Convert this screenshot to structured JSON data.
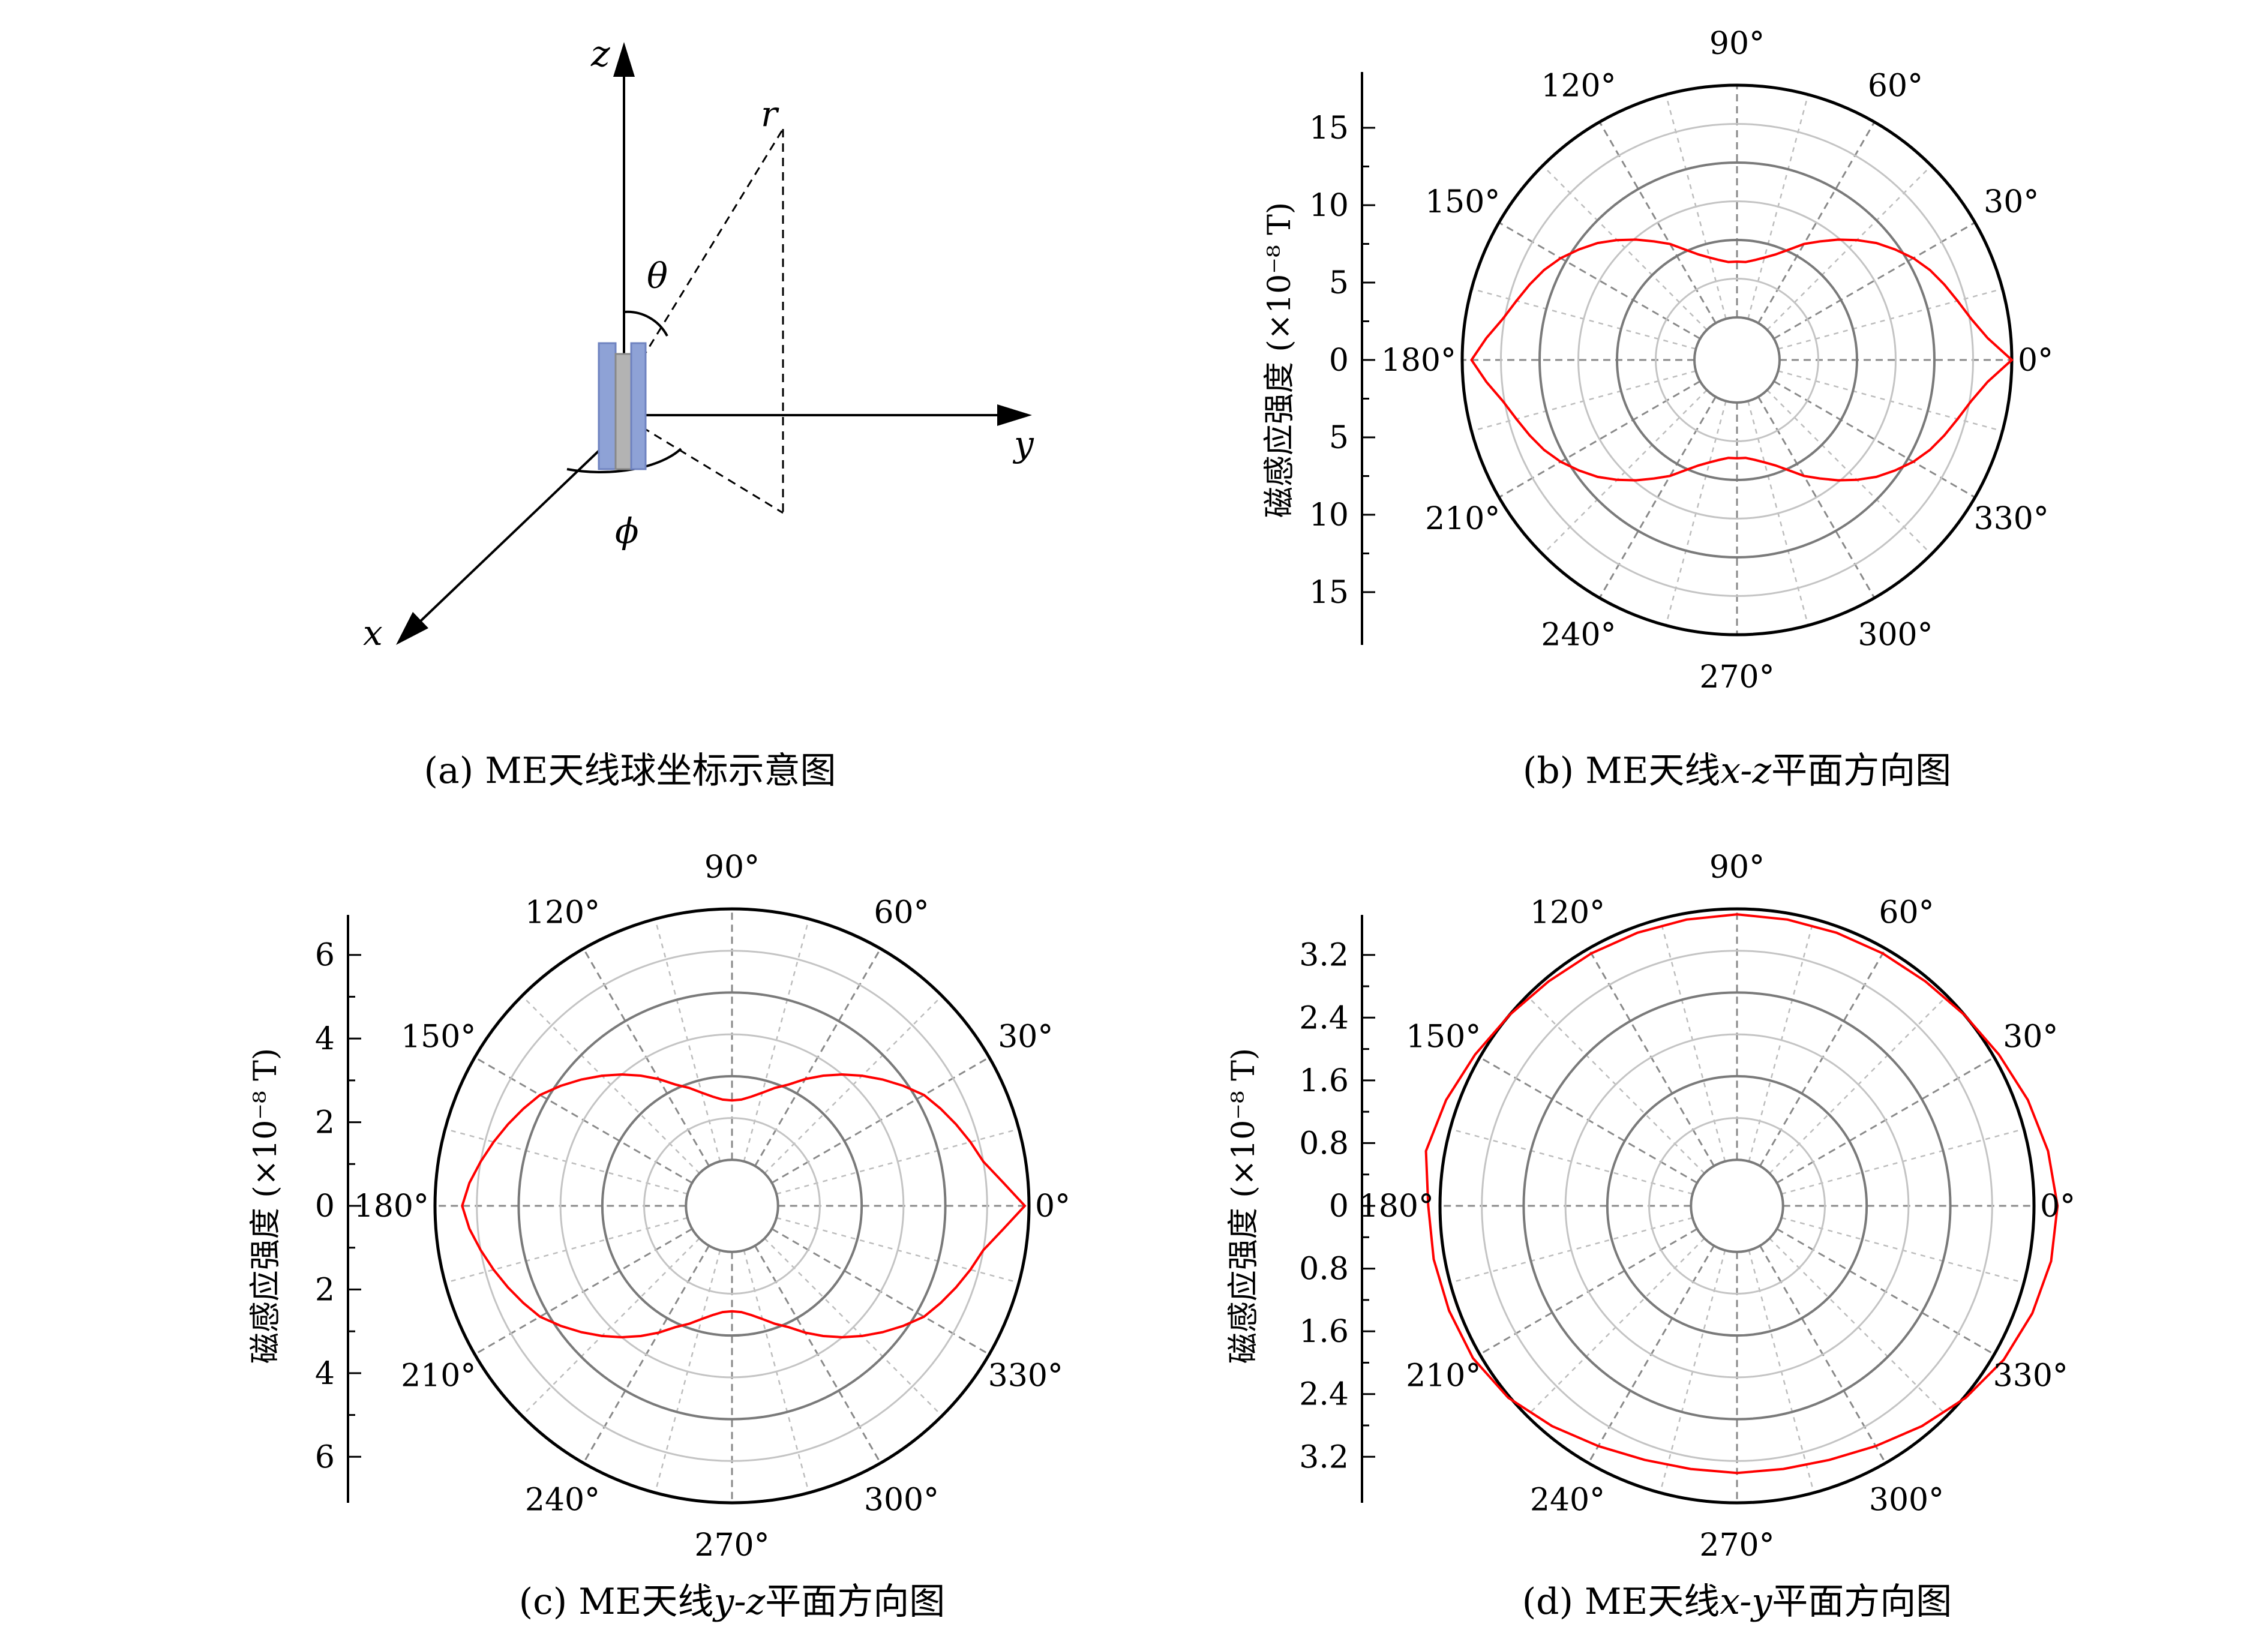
{
  "colors": {
    "curve": "#ff0000",
    "antenna_blue": "#8ea2d6",
    "antenna_gray": "#b3b3b3"
  },
  "schematic": {
    "caption": "(a) ME天线球坐标示意图",
    "axis_x": "x",
    "axis_y": "y",
    "axis_z": "z",
    "point_r": "r",
    "angle_theta": "θ",
    "angle_phi": "ϕ"
  },
  "chart_data": [
    {
      "type": "polar",
      "caption_prefix": "(b) ME天线",
      "caption_var": "x-z",
      "caption_suffix": "平面方向图",
      "ylabel": "磁感应强度 (×10⁻⁸ T)",
      "rlim": [
        0,
        15
      ],
      "radial_ticks": [
        "15",
        "10",
        "5",
        "0",
        "5",
        "10",
        "15"
      ],
      "angle_labels": [
        "0°",
        "30°",
        "60°",
        "90°",
        "120°",
        "150°",
        "180°",
        "210°",
        "240°",
        "270°",
        "300°",
        "330°"
      ],
      "series": [
        {
          "theta_deg": [
            0,
            5,
            10,
            15,
            20,
            25,
            30,
            35,
            40,
            45,
            50,
            55,
            60,
            65,
            70,
            75,
            80,
            85,
            90,
            95,
            100,
            105,
            110,
            115,
            120,
            125,
            130,
            135,
            140,
            145,
            150,
            155,
            160,
            165,
            170,
            175,
            180,
            185,
            190,
            195,
            200,
            205,
            210,
            215,
            220,
            225,
            230,
            235,
            240,
            245,
            250,
            255,
            260,
            265,
            270,
            275,
            280,
            285,
            290,
            295,
            300,
            305,
            310,
            315,
            320,
            325,
            330,
            335,
            340,
            345,
            350,
            355,
            360
          ],
          "r": [
            15,
            13.5,
            12.6,
            12.0,
            11.5,
            11.0,
            10.4,
            9.7,
            9.0,
            8.2,
            7.4,
            6.6,
            5.9,
            5.1,
            4.5,
            4.1,
            3.8,
            3.6,
            3.6,
            3.6,
            3.8,
            4.1,
            4.5,
            5.1,
            5.9,
            6.6,
            7.4,
            8.2,
            9.0,
            9.7,
            10.4,
            11.0,
            11.5,
            12.0,
            12.6,
            13.5,
            14.4,
            13.5,
            12.6,
            12.0,
            11.5,
            11.0,
            10.4,
            9.7,
            9.0,
            8.2,
            7.4,
            6.6,
            5.9,
            5.1,
            4.5,
            4.1,
            3.8,
            3.6,
            3.6,
            3.6,
            3.8,
            4.1,
            4.5,
            5.1,
            5.9,
            6.6,
            7.4,
            8.2,
            9.0,
            9.7,
            10.4,
            11.0,
            11.5,
            12.0,
            12.6,
            13.5,
            15
          ]
        }
      ]
    },
    {
      "type": "polar",
      "caption_prefix": "(c) ME天线",
      "caption_var": "y-z",
      "caption_suffix": "平面方向图",
      "ylabel": "磁感应强度 (×10⁻⁸ T)",
      "rlim": [
        0,
        6
      ],
      "radial_ticks": [
        "6",
        "4",
        "2",
        "0",
        "2",
        "4",
        "6"
      ],
      "angle_labels": [
        "0°",
        "30°",
        "60°",
        "90°",
        "120°",
        "150°",
        "180°",
        "210°",
        "240°",
        "270°",
        "300°",
        "330°"
      ],
      "series": [
        {
          "theta_deg": [
            0,
            5,
            10,
            15,
            20,
            25,
            30,
            35,
            40,
            45,
            50,
            55,
            60,
            65,
            70,
            75,
            80,
            85,
            90,
            95,
            100,
            105,
            110,
            115,
            120,
            125,
            130,
            135,
            140,
            145,
            150,
            155,
            160,
            165,
            170,
            175,
            180,
            185,
            190,
            195,
            200,
            205,
            210,
            215,
            220,
            225,
            230,
            235,
            240,
            245,
            250,
            255,
            260,
            265,
            270,
            275,
            280,
            285,
            290,
            295,
            300,
            305,
            310,
            315,
            320,
            325,
            330,
            335,
            340,
            345,
            350,
            355,
            360
          ],
          "r": [
            5.9,
            5.4,
            5.0,
            4.8,
            4.6,
            4.4,
            4.2,
            3.9,
            3.6,
            3.3,
            3.0,
            2.7,
            2.4,
            2.1,
            1.9,
            1.7,
            1.55,
            1.45,
            1.42,
            1.45,
            1.55,
            1.7,
            1.9,
            2.1,
            2.4,
            2.7,
            3.0,
            3.3,
            3.6,
            3.9,
            4.2,
            4.4,
            4.6,
            4.8,
            5.0,
            5.2,
            5.35,
            5.2,
            5.0,
            4.8,
            4.6,
            4.4,
            4.2,
            3.9,
            3.6,
            3.3,
            3.0,
            2.7,
            2.4,
            2.1,
            1.9,
            1.7,
            1.55,
            1.45,
            1.42,
            1.45,
            1.55,
            1.7,
            1.9,
            2.1,
            2.4,
            2.7,
            3.0,
            3.3,
            3.6,
            3.9,
            4.2,
            4.4,
            4.6,
            4.8,
            5.0,
            5.4,
            5.9
          ]
        }
      ]
    },
    {
      "type": "polar",
      "caption_prefix": "(d) ME天线",
      "caption_var": "x-y",
      "caption_suffix": "平面方向图",
      "ylabel": "磁感应强度 (×10⁻⁸ T)",
      "rlim": [
        0,
        3.2
      ],
      "radial_ticks": [
        "3.2",
        "2.4",
        "1.6",
        "0.8",
        "0",
        "0.8",
        "1.6",
        "2.4",
        "3.2"
      ],
      "angle_labels": [
        "0°",
        "30°",
        "60°",
        "90°",
        "120°",
        "150°",
        "180°",
        "210°",
        "240°",
        "270°",
        "300°",
        "330°"
      ],
      "series": [
        {
          "theta_deg": [
            0,
            10,
            20,
            30,
            40,
            50,
            60,
            70,
            80,
            90,
            100,
            110,
            120,
            130,
            140,
            150,
            160,
            170,
            180,
            190,
            200,
            210,
            220,
            230,
            240,
            250,
            260,
            270,
            280,
            290,
            300,
            310,
            320,
            330,
            340,
            350,
            360
          ],
          "r": [
            3.5,
            3.44,
            3.36,
            3.27,
            3.2,
            3.15,
            3.13,
            3.12,
            3.12,
            3.13,
            3.12,
            3.12,
            3.13,
            3.15,
            3.2,
            3.27,
            3.36,
            3.44,
            3.35,
            3.34,
            3.32,
            3.3,
            3.22,
            3.08,
            2.95,
            2.86,
            2.82,
            2.82,
            2.82,
            2.86,
            2.95,
            3.08,
            3.22,
            3.34,
            3.42,
            3.48,
            3.5
          ]
        }
      ]
    }
  ]
}
